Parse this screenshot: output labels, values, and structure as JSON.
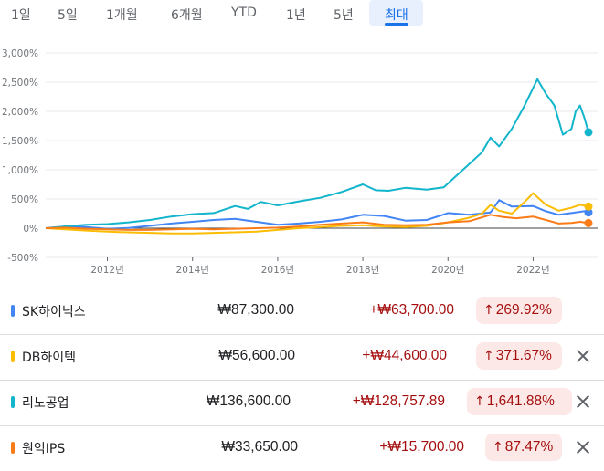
{
  "tabs": {
    "items": [
      "1일",
      "5일",
      "1개월",
      "6개월",
      "YTD",
      "1년",
      "5년",
      "최대"
    ],
    "active": "최대"
  },
  "chart_data": {
    "type": "line",
    "yticks": [
      "3,000%",
      "2,500%",
      "2,000%",
      "1,500%",
      "1,000%",
      "500%",
      "0%",
      "-500%"
    ],
    "xticks": [
      "2012년",
      "2014년",
      "2016년",
      "2018년",
      "2020년",
      "2022년"
    ],
    "ylim": [
      -500,
      3000
    ],
    "grid": true,
    "series": [
      {
        "name": "SK하이닉스",
        "color": "#4285f4",
        "points": [
          [
            2010.55,
            0
          ],
          [
            2011.0,
            30
          ],
          [
            2011.5,
            20
          ],
          [
            2012.0,
            -10
          ],
          [
            2012.5,
            5
          ],
          [
            2013.0,
            40
          ],
          [
            2013.5,
            80
          ],
          [
            2014.0,
            110
          ],
          [
            2014.5,
            140
          ],
          [
            2015.0,
            160
          ],
          [
            2015.5,
            110
          ],
          [
            2016.0,
            60
          ],
          [
            2016.5,
            80
          ],
          [
            2017.0,
            110
          ],
          [
            2017.5,
            150
          ],
          [
            2018.0,
            230
          ],
          [
            2018.5,
            210
          ],
          [
            2019.0,
            130
          ],
          [
            2019.5,
            140
          ],
          [
            2020.0,
            260
          ],
          [
            2020.5,
            230
          ],
          [
            2021.0,
            270
          ],
          [
            2021.2,
            480
          ],
          [
            2021.5,
            370
          ],
          [
            2022.0,
            380
          ],
          [
            2022.3,
            290
          ],
          [
            2022.6,
            230
          ],
          [
            2022.9,
            260
          ],
          [
            2023.2,
            290
          ],
          [
            2023.3,
            270
          ]
        ],
        "end_value": 269.92
      },
      {
        "name": "DB하이텍",
        "color": "#fbbc04",
        "points": [
          [
            2010.55,
            0
          ],
          [
            2011.0,
            -20
          ],
          [
            2011.5,
            -40
          ],
          [
            2012.0,
            -60
          ],
          [
            2012.5,
            -70
          ],
          [
            2013.0,
            -80
          ],
          [
            2013.5,
            -90
          ],
          [
            2014.0,
            -90
          ],
          [
            2014.5,
            -80
          ],
          [
            2015.0,
            -70
          ],
          [
            2015.5,
            -60
          ],
          [
            2016.0,
            -30
          ],
          [
            2016.5,
            0
          ],
          [
            2017.0,
            20
          ],
          [
            2017.5,
            40
          ],
          [
            2018.0,
            50
          ],
          [
            2018.5,
            30
          ],
          [
            2019.0,
            20
          ],
          [
            2019.5,
            40
          ],
          [
            2020.0,
            100
          ],
          [
            2020.5,
            180
          ],
          [
            2020.8,
            250
          ],
          [
            2021.0,
            400
          ],
          [
            2021.2,
            300
          ],
          [
            2021.5,
            250
          ],
          [
            2021.8,
            450
          ],
          [
            2022.0,
            600
          ],
          [
            2022.3,
            400
          ],
          [
            2022.6,
            300
          ],
          [
            2022.9,
            350
          ],
          [
            2023.1,
            400
          ],
          [
            2023.3,
            372
          ]
        ],
        "end_value": 371.67
      },
      {
        "name": "리노공업",
        "color": "#12b5cb",
        "points": [
          [
            2010.55,
            0
          ],
          [
            2011.0,
            30
          ],
          [
            2011.5,
            60
          ],
          [
            2012.0,
            70
          ],
          [
            2012.5,
            100
          ],
          [
            2013.0,
            140
          ],
          [
            2013.5,
            200
          ],
          [
            2014.0,
            240
          ],
          [
            2014.5,
            260
          ],
          [
            2015.0,
            380
          ],
          [
            2015.3,
            330
          ],
          [
            2015.6,
            450
          ],
          [
            2016.0,
            390
          ],
          [
            2016.5,
            460
          ],
          [
            2017.0,
            520
          ],
          [
            2017.5,
            620
          ],
          [
            2018.0,
            750
          ],
          [
            2018.3,
            650
          ],
          [
            2018.6,
            640
          ],
          [
            2019.0,
            690
          ],
          [
            2019.5,
            660
          ],
          [
            2019.9,
            700
          ],
          [
            2020.2,
            900
          ],
          [
            2020.5,
            1100
          ],
          [
            2020.8,
            1300
          ],
          [
            2021.0,
            1550
          ],
          [
            2021.2,
            1400
          ],
          [
            2021.5,
            1700
          ],
          [
            2021.8,
            2100
          ],
          [
            2022.0,
            2400
          ],
          [
            2022.1,
            2550
          ],
          [
            2022.3,
            2300
          ],
          [
            2022.5,
            2100
          ],
          [
            2022.7,
            1600
          ],
          [
            2022.9,
            1700
          ],
          [
            2023.0,
            2000
          ],
          [
            2023.1,
            2100
          ],
          [
            2023.2,
            1900
          ],
          [
            2023.3,
            1642
          ]
        ],
        "end_value": 1641.88
      },
      {
        "name": "원익IPS",
        "color": "#fa7b17",
        "points": [
          [
            2010.55,
            0
          ],
          [
            2011.0,
            10
          ],
          [
            2011.5,
            -10
          ],
          [
            2012.0,
            -20
          ],
          [
            2012.5,
            -30
          ],
          [
            2013.0,
            -30
          ],
          [
            2013.5,
            -20
          ],
          [
            2014.0,
            -10
          ],
          [
            2014.5,
            -20
          ],
          [
            2015.0,
            -10
          ],
          [
            2015.5,
            0
          ],
          [
            2016.0,
            10
          ],
          [
            2016.5,
            30
          ],
          [
            2017.0,
            60
          ],
          [
            2017.5,
            80
          ],
          [
            2018.0,
            100
          ],
          [
            2018.5,
            60
          ],
          [
            2019.0,
            50
          ],
          [
            2019.5,
            60
          ],
          [
            2020.0,
            100
          ],
          [
            2020.5,
            120
          ],
          [
            2021.0,
            230
          ],
          [
            2021.3,
            190
          ],
          [
            2021.6,
            170
          ],
          [
            2022.0,
            200
          ],
          [
            2022.3,
            140
          ],
          [
            2022.6,
            80
          ],
          [
            2022.9,
            90
          ],
          [
            2023.1,
            110
          ],
          [
            2023.3,
            87
          ]
        ],
        "end_value": 87.47
      }
    ]
  },
  "stocks": [
    {
      "name": "SK하이닉스",
      "color": "#4285f4",
      "price": "₩87,300.00",
      "change": "+₩63,700.00",
      "pct": "269.92%",
      "arrow": "↑",
      "removable": false
    },
    {
      "name": "DB하이텍",
      "color": "#fbbc04",
      "price": "₩56,600.00",
      "change": "+₩44,600.00",
      "pct": "371.67%",
      "arrow": "↑",
      "removable": true
    },
    {
      "name": "리노공업",
      "color": "#12b5cb",
      "price": "₩136,600.00",
      "change": "+₩128,757.89",
      "pct": "1,641.88%",
      "arrow": "↑",
      "removable": true
    },
    {
      "name": "원익IPS",
      "color": "#fa7b17",
      "price": "₩33,650.00",
      "change": "+₩15,700.00",
      "pct": "87.47%",
      "arrow": "↑",
      "removable": true
    }
  ]
}
